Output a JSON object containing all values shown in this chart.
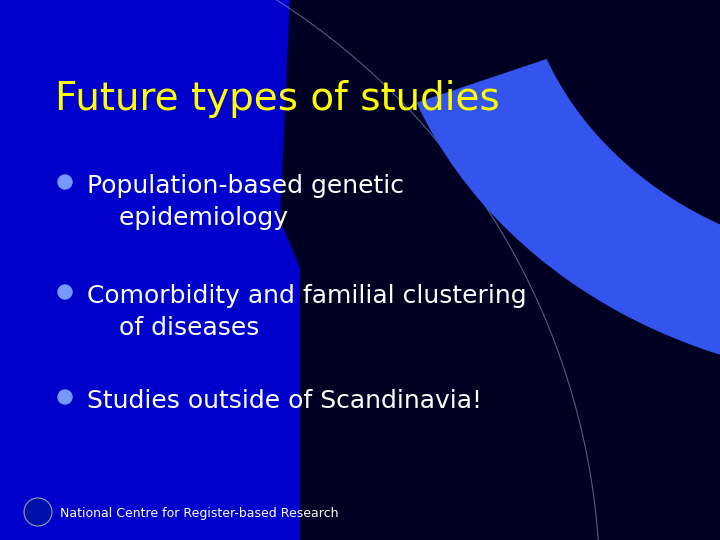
{
  "title": "Future types of studies",
  "title_color": "#FFFF00",
  "title_fontsize": 28,
  "bg_color": "#0000CC",
  "bullet_color": "#7799FF",
  "bullet_text_color": "#FFFFFF",
  "bullets": [
    "Population-based genetic\nepidemiology",
    "Comorbidity and familial clustering\nof diseases",
    "Studies outside of Scandinavia!"
  ],
  "bullet_fontsize": 18,
  "footer_text": "National Centre for Register-based Research",
  "footer_color": "#FFFFFF",
  "footer_fontsize": 9,
  "dark_bg": "#000022",
  "arc_blue": "#3355EE",
  "arc_line_color": "#8899CC"
}
